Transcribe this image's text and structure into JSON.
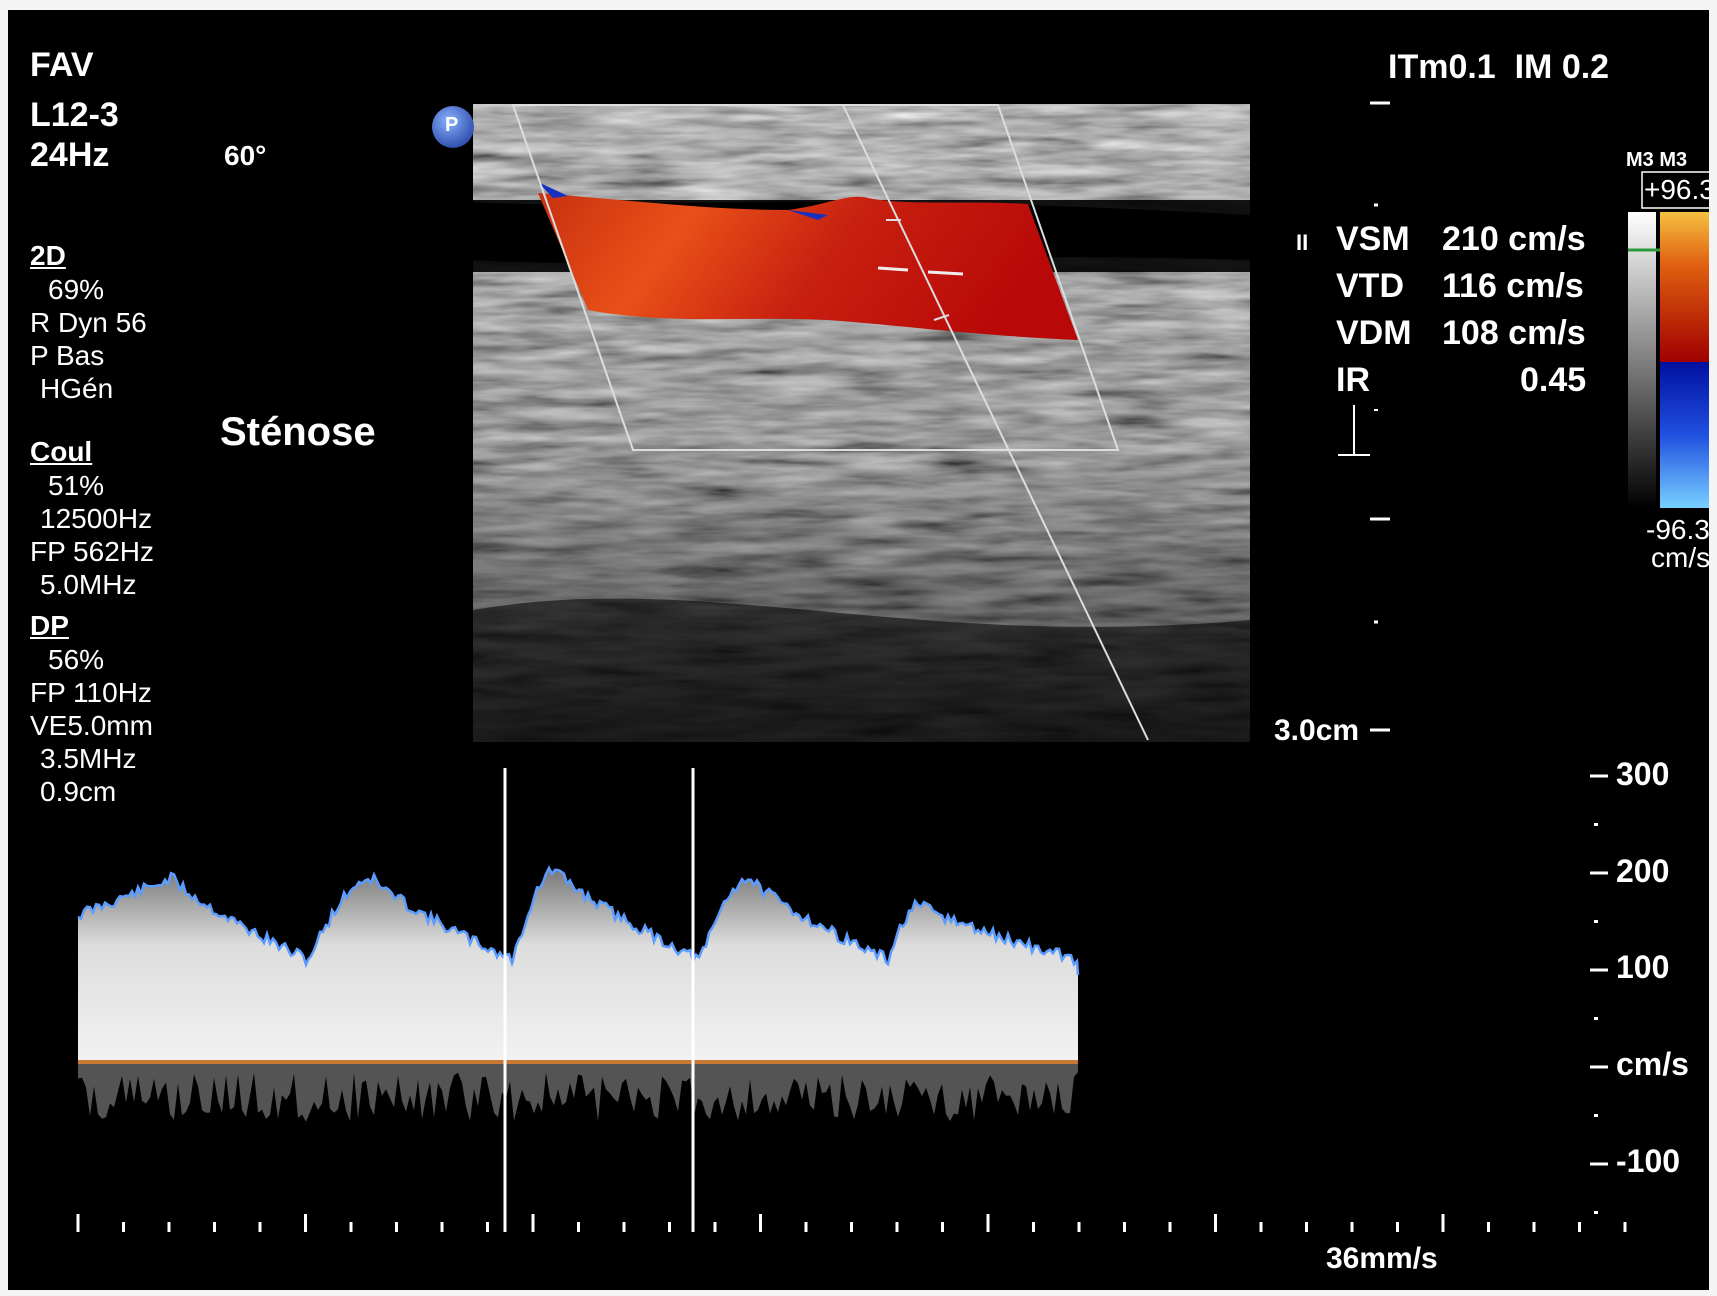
{
  "header": {
    "exam": "FAV",
    "probe": "L12-3",
    "frame_rate": "24Hz",
    "angle": "60°",
    "safety_index": "ITm0.1  IM 0.2"
  },
  "params": {
    "d2_title": "2D",
    "d2_gain": "69%",
    "d2_dyn": "R Dyn 56",
    "d2_power": "P Bas",
    "d2_freq": "HGén",
    "color_title": "Coul",
    "color_gain": "51%",
    "color_prf": "12500Hz",
    "color_filter": "FP 562Hz",
    "color_freq": "5.0MHz",
    "pw_title": "DP",
    "pw_gain": "56%",
    "pw_filter": "FP 110Hz",
    "pw_gate": "VE5.0mm",
    "pw_freq": "3.5MHz",
    "pw_depth": "0.9cm"
  },
  "annotation": "Sténose",
  "probe_marker": "P",
  "measurements": {
    "marker": "II",
    "rows": [
      {
        "label": "VSM",
        "value": "210 cm/s"
      },
      {
        "label": "VTD",
        "value": "116 cm/s"
      },
      {
        "label": "VDM",
        "value": "108 cm/s"
      },
      {
        "label": "IR",
        "value": "0.45"
      }
    ]
  },
  "color_bar": {
    "map_label": "M3 M3",
    "max": "+96.3",
    "min": "-96.3",
    "unit": "cm/s",
    "colors": {
      "positive_top": "#f5c040",
      "positive_bottom": "#b00000",
      "negative_top": "#0020a0",
      "negative_bottom": "#70c8ff"
    }
  },
  "depth_label": "3.0cm",
  "spectral_scale": {
    "ticks": [
      "300",
      "200",
      "100",
      "cm/s",
      "-100"
    ]
  },
  "sweep_speed": "36mm/s",
  "colors": {
    "envelope": "#5a9cff",
    "baseline": "#c87832",
    "background": "#000000"
  }
}
